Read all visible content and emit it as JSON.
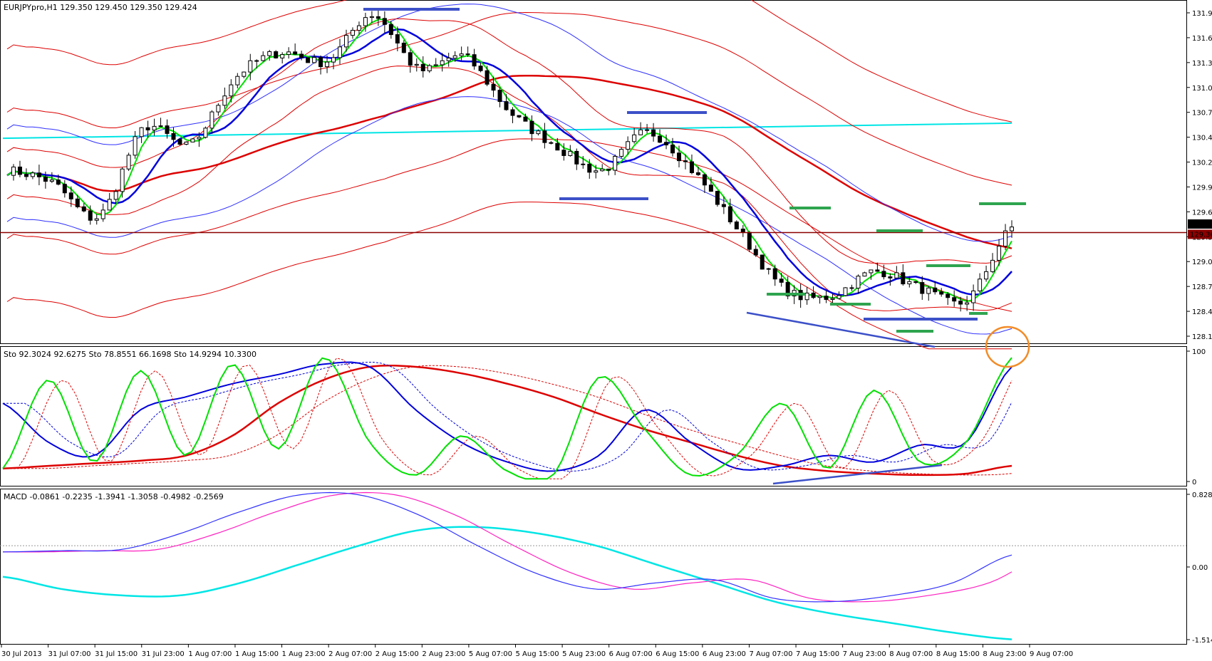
{
  "window": {
    "title": "EURJPYpro,H1"
  },
  "panels": {
    "price": {
      "header": "EURJPYpro,H1  129.350 129.450 129.350 129.424"
    },
    "stoch": {
      "header": "Sto 92.3024 92.6275   Sto 78.8551 66.1698   Sto 14.9294 10.3300"
    },
    "macd": {
      "header": "MACD -0.0861 -0.2235 -1.3941 -1.3058 -0.4982 -0.2569"
    }
  },
  "chart_data": [
    {
      "type": "candlestick",
      "symbol": "EURJPYpro",
      "timeframe": "H1",
      "ohlc_last": {
        "open": 129.35,
        "high": 129.45,
        "low": 129.35,
        "close": 129.424
      },
      "y_ticks": [
        "131.970",
        "131.675",
        "131.380",
        "131.085",
        "130.790",
        "130.495",
        "130.200",
        "129.905",
        "129.610",
        "129.315",
        "129.015",
        "128.720",
        "128.425",
        "128.130"
      ],
      "price_labels": [
        {
          "text": "129.424",
          "bg": "#000000"
        },
        {
          "text": "129.361",
          "bg": "#8b0000"
        }
      ],
      "ylim": [
        128.13,
        131.97
      ],
      "x_labels": [
        "30 Jul 2013",
        "31 Jul 07:00",
        "31 Jul 15:00",
        "31 Jul 23:00",
        "1 Aug 07:00",
        "1 Aug 15:00",
        "1 Aug 23:00",
        "2 Aug 07:00",
        "2 Aug 15:00",
        "2 Aug 23:00",
        "5 Aug 07:00",
        "5 Aug 15:00",
        "5 Aug 23:00",
        "6 Aug 07:00",
        "6 Aug 15:00",
        "6 Aug 23:00",
        "7 Aug 07:00",
        "7 Aug 15:00",
        "7 Aug 23:00",
        "8 Aug 07:00",
        "8 Aug 15:00",
        "8 Aug 23:00",
        "9 Aug 07:00"
      ],
      "close_anchors": [
        130.1,
        129.95,
        129.55,
        130.6,
        130.4,
        131.2,
        131.5,
        131.4,
        131.95,
        131.3,
        131.45,
        130.8,
        130.4,
        130.1,
        130.55,
        130.1,
        129.4,
        128.7,
        128.6,
        128.9,
        128.7,
        128.55,
        129.42
      ],
      "horizontal_line": {
        "price": 129.361,
        "color": "#8b0000"
      },
      "colors": {
        "bull": "#ffffff",
        "bear": "#000000",
        "ma_fast": "#00e000",
        "ma_mid": "#0000dd",
        "ma_slow": "#dd0000",
        "horizontal": "#00e5e5"
      },
      "annotations": [
        "support/resistance bars (blue, green)",
        "divergence trendline (blue)"
      ]
    },
    {
      "type": "line",
      "name": "Stochastic",
      "y_ticks": [
        "100",
        "0"
      ],
      "ylim": [
        0,
        100
      ],
      "values_last": {
        "fast_main": 92.3024,
        "fast_signal": 92.6275,
        "mid_main": 78.8551,
        "mid_signal": 66.1698,
        "slow_main": 14.9294,
        "slow_signal": 10.33
      },
      "fast_anchors": [
        10,
        78,
        15,
        85,
        20,
        90,
        25,
        95,
        30,
        5,
        35,
        8,
        5,
        80,
        40,
        5,
        20,
        60,
        10,
        70,
        15,
        30,
        95
      ],
      "mid_anchors": [
        60,
        30,
        20,
        55,
        65,
        75,
        82,
        90,
        88,
        55,
        30,
        15,
        8,
        20,
        55,
        30,
        10,
        12,
        20,
        15,
        28,
        30,
        88
      ],
      "slow_anchors": [
        10,
        12,
        14,
        16,
        20,
        35,
        60,
        78,
        88,
        88,
        83,
        75,
        65,
        52,
        40,
        30,
        20,
        12,
        8,
        6,
        5,
        6,
        12
      ],
      "colors": {
        "fast": "#00e000",
        "mid": "#0000dd",
        "slow": "#dd0000"
      }
    },
    {
      "type": "line",
      "name": "MACD",
      "y_ticks": [
        "0.8286",
        "0.00",
        "-1.5142"
      ],
      "ylim": [
        -1.5142,
        0.8286
      ],
      "values_last": [
        -0.0861,
        -0.2235,
        -1.3941,
        -1.3058,
        -0.4982,
        -0.2569
      ],
      "fast_anchors": [
        -0.1,
        -0.08,
        -0.06,
        0.2,
        0.55,
        0.82,
        0.82,
        0.5,
        0.0,
        -0.45,
        -0.7,
        -0.6,
        -0.55,
        -0.85,
        -0.9,
        -0.8,
        -0.6,
        -0.15
      ],
      "slow_anchors": [
        -0.5,
        -0.7,
        -0.8,
        -0.8,
        -0.6,
        -0.3,
        0.0,
        0.25,
        0.3,
        0.2,
        0.0,
        -0.3,
        -0.6,
        -0.9,
        -1.1,
        -1.25,
        -1.4,
        -1.51
      ],
      "colors": {
        "fast": "#3030ff",
        "signal": "#ff20c0",
        "slow": "#00e5e5"
      }
    }
  ]
}
